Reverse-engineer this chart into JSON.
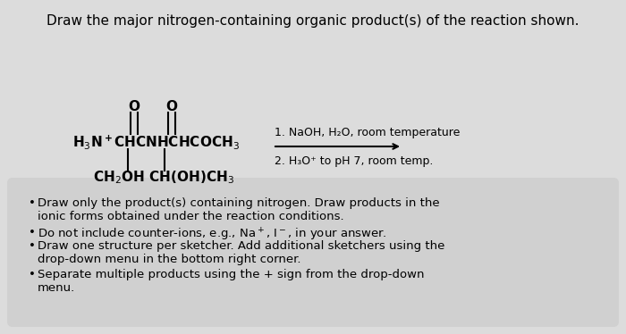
{
  "title": "Draw the major nitrogen-containing organic product(s) of the reaction shown.",
  "title_fontsize": 11.0,
  "bg_color": "#dcdcdc",
  "box_bg": "#d0d0d0",
  "bullet_points": [
    "Draw only the product(s) containing nitrogen. Draw products in the\nionic forms obtained under the reaction conditions.",
    "Do not include counter-ions, e.g., Na⁺, I⁻, in your answer.",
    "Draw one structure per sketcher. Add additional sketchers using the\ndrop-down menu in the bottom right corner.",
    "Separate multiple products using the + sign from the drop-down\nmenu."
  ],
  "reaction_line1": "1. NaOH, H₂O, room temperature",
  "reaction_line2": "2. H₃O⁺ to pH 7, room temp.",
  "struct_fontsize": 11.0,
  "cond_fontsize": 9.0,
  "bullet_fontsize": 9.5
}
